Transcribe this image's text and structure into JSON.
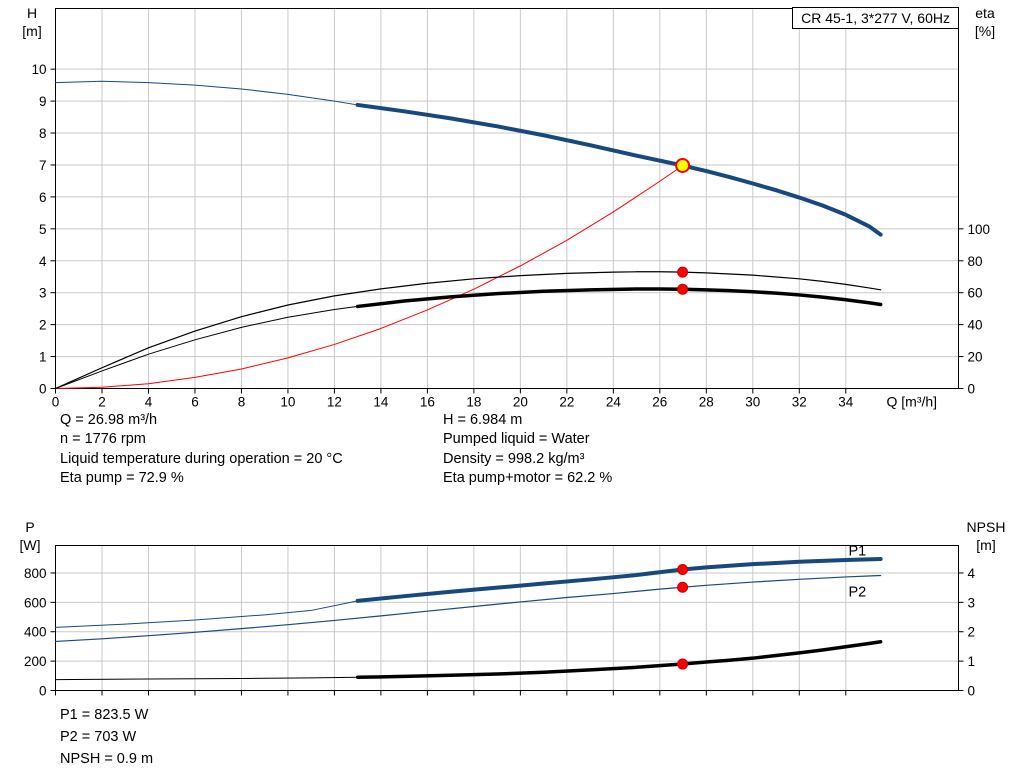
{
  "annotations": {
    "left_column": [
      "Q = 26.98 m³/h",
      "n = 1776 rpm",
      "Liquid temperature during operation = 20 °C",
      "Eta pump = 72.9 %"
    ],
    "right_column": [
      "H = 6.984 m",
      "Pumped liquid = Water",
      "Density = 998.2 kg/m³",
      "Eta pump+motor = 62.2 %"
    ],
    "power_block": [
      "P1 = 823.5 W",
      "P2 = 703 W",
      "NPSH = 0.9 m"
    ]
  },
  "colors": {
    "curve_blue": "#17497F",
    "label_blue": "#2A5CAA",
    "red": "#FF0000",
    "dark_red": "#C80000",
    "yellow": "#FFFF00",
    "grid": "#C9C9C9",
    "black": "#000000"
  },
  "chart_data": [
    {
      "type": "line",
      "name": "qh-eta-chart",
      "title": "CR 45-1, 3*277 V, 60Hz",
      "x": {
        "label": "Q [m³/h]",
        "min": 0,
        "max": 38.85,
        "show_tick_labels": true,
        "ticks": [
          0,
          2,
          4,
          6,
          8,
          10,
          12,
          14,
          16,
          18,
          20,
          22,
          24,
          26,
          28,
          30,
          32,
          34
        ]
      },
      "y_left": {
        "label": "H",
        "unit": "[m]",
        "min": 0,
        "max": 11.9,
        "ticks": [
          0,
          1,
          2,
          3,
          4,
          5,
          6,
          7,
          8,
          9,
          10
        ]
      },
      "y_right": {
        "label": "eta",
        "unit": "[%]",
        "min": 0,
        "max": 238,
        "ticks": [
          0,
          20,
          40,
          60,
          80,
          100
        ]
      },
      "series": [
        {
          "name": "qh-curve-extended",
          "axis": "left",
          "color": "#17497F",
          "width": 1,
          "points": [
            [
              0,
              9.58
            ],
            [
              2,
              9.62
            ],
            [
              4,
              9.58
            ],
            [
              6,
              9.5
            ],
            [
              8,
              9.38
            ],
            [
              10,
              9.21
            ],
            [
              12,
              9.0
            ],
            [
              13,
              8.88
            ]
          ]
        },
        {
          "name": "qh-curve",
          "axis": "left",
          "color": "#17497F",
          "width": 4,
          "points": [
            [
              13,
              8.88
            ],
            [
              15,
              8.68
            ],
            [
              17,
              8.46
            ],
            [
              19,
              8.21
            ],
            [
              21,
              7.93
            ],
            [
              23,
              7.62
            ],
            [
              25,
              7.29
            ],
            [
              26.98,
              6.984
            ],
            [
              28,
              6.81
            ],
            [
              29,
              6.62
            ],
            [
              30,
              6.42
            ],
            [
              31,
              6.21
            ],
            [
              32,
              5.98
            ],
            [
              33,
              5.73
            ],
            [
              34,
              5.44
            ],
            [
              35,
              5.08
            ],
            [
              35.5,
              4.82
            ]
          ]
        },
        {
          "name": "system-curve",
          "axis": "left",
          "color": "#FF0000",
          "width": 1,
          "points": [
            [
              0,
              0
            ],
            [
              2,
              0.04
            ],
            [
              4,
              0.15
            ],
            [
              6,
              0.35
            ],
            [
              8,
              0.61
            ],
            [
              10,
              0.96
            ],
            [
              12,
              1.38
            ],
            [
              14,
              1.88
            ],
            [
              16,
              2.46
            ],
            [
              18,
              3.11
            ],
            [
              20,
              3.84
            ],
            [
              22,
              4.64
            ],
            [
              24,
              5.53
            ],
            [
              26,
              6.49
            ],
            [
              26.98,
              6.98
            ]
          ]
        },
        {
          "name": "eta-pump-curve",
          "axis": "right",
          "color": "#000000",
          "width": 1.2,
          "points": [
            [
              0,
              0
            ],
            [
              2,
              13
            ],
            [
              4,
              25.5
            ],
            [
              6,
              36
            ],
            [
              8,
              45
            ],
            [
              10,
              52.3
            ],
            [
              12,
              58
            ],
            [
              14,
              62.4
            ],
            [
              16,
              65.9
            ],
            [
              18,
              68.7
            ],
            [
              20,
              70.7
            ],
            [
              22,
              72.1
            ],
            [
              24,
              72.9
            ],
            [
              25,
              73.1
            ],
            [
              26,
              73.1
            ],
            [
              26.98,
              72.9
            ],
            [
              28,
              72.4
            ],
            [
              30,
              71.0
            ],
            [
              32,
              68.7
            ],
            [
              33,
              67.1
            ],
            [
              34,
              65.2
            ],
            [
              35,
              63.0
            ],
            [
              35.5,
              61.8
            ]
          ]
        },
        {
          "name": "eta-pump-motor-extended",
          "axis": "right",
          "color": "#000000",
          "width": 1,
          "points": [
            [
              0,
              0
            ],
            [
              2,
              11
            ],
            [
              4,
              21.5
            ],
            [
              6,
              30.5
            ],
            [
              8,
              38.3
            ],
            [
              10,
              44.6
            ],
            [
              12,
              49.5
            ],
            [
              13,
              51.4
            ]
          ]
        },
        {
          "name": "eta-pump-motor-curve",
          "axis": "right",
          "color": "#000000",
          "width": 3.5,
          "points": [
            [
              13,
              51.4
            ],
            [
              15,
              54.8
            ],
            [
              17,
              57.4
            ],
            [
              19,
              59.4
            ],
            [
              21,
              60.9
            ],
            [
              23,
              61.8
            ],
            [
              25,
              62.3
            ],
            [
              26,
              62.3
            ],
            [
              26.98,
              62.2
            ],
            [
              28,
              61.8
            ],
            [
              29,
              61.3
            ],
            [
              30,
              60.6
            ],
            [
              31,
              59.7
            ],
            [
              32,
              58.6
            ],
            [
              33,
              57.2
            ],
            [
              34,
              55.6
            ],
            [
              35,
              53.7
            ],
            [
              35.5,
              52.6
            ]
          ]
        }
      ],
      "markers": [
        {
          "name": "duty-point",
          "x": 26.98,
          "y": 6.984,
          "axis": "left",
          "fill": "#FFFF00",
          "stroke": "#FF0000",
          "stroke_width": 2,
          "r": 6.5
        },
        {
          "name": "eta-pump-point",
          "x": 26.98,
          "y": 72.9,
          "axis": "right",
          "fill": "#FF0000",
          "stroke": "#C80000",
          "stroke_width": 1,
          "r": 5
        },
        {
          "name": "eta-pump-motor-point",
          "x": 26.98,
          "y": 62.2,
          "axis": "right",
          "fill": "#FF0000",
          "stroke": "#C80000",
          "stroke_width": 1,
          "r": 5
        }
      ]
    },
    {
      "type": "line",
      "name": "power-npsh-chart",
      "title": "",
      "x": {
        "label": "",
        "min": 0,
        "max": 38.85,
        "show_tick_labels": false,
        "ticks": [
          0,
          2,
          4,
          6,
          8,
          10,
          12,
          14,
          16,
          18,
          20,
          22,
          24,
          26,
          28,
          30,
          32,
          34
        ]
      },
      "y_left": {
        "label": "P",
        "unit": "[W]",
        "min": 0,
        "max": 987,
        "ticks": [
          0,
          200,
          400,
          600,
          800
        ]
      },
      "y_right": {
        "label": "NPSH",
        "unit": "[m]",
        "min": 0,
        "max": 4.935,
        "ticks": [
          0,
          1,
          2,
          3,
          4
        ]
      },
      "series": [
        {
          "name": "p1-curve-extended",
          "axis": "left",
          "color": "#17497F",
          "width": 1,
          "points": [
            [
              0,
              430
            ],
            [
              3,
              452
            ],
            [
              6,
              480
            ],
            [
              9,
              515
            ],
            [
              11,
              545
            ],
            [
              13,
              610
            ]
          ]
        },
        {
          "name": "p1-curve",
          "axis": "left",
          "color": "#17497F",
          "width": 4,
          "label": "P1",
          "label_at": [
            34.5,
            920
          ],
          "label_color": "#2A5CAA",
          "points": [
            [
              13,
              610
            ],
            [
              15,
              642
            ],
            [
              17,
              672
            ],
            [
              19,
              700
            ],
            [
              21,
              728
            ],
            [
              23,
              756
            ],
            [
              25,
              786
            ],
            [
              26.98,
              823.5
            ],
            [
              28,
              838
            ],
            [
              30,
              860
            ],
            [
              32,
              876
            ],
            [
              34,
              888
            ],
            [
              35.5,
              895
            ]
          ]
        },
        {
          "name": "p2-curve",
          "axis": "left",
          "color": "#17497F",
          "width": 1.2,
          "label": "P2",
          "label_at": [
            34.5,
            640
          ],
          "label_color": "#2A5CAA",
          "points": [
            [
              0,
              334
            ],
            [
              2,
              352
            ],
            [
              4,
              373
            ],
            [
              6,
              396
            ],
            [
              8,
              421
            ],
            [
              10,
              448
            ],
            [
              12,
              477
            ],
            [
              14,
              508
            ],
            [
              16,
              540
            ],
            [
              18,
              572
            ],
            [
              20,
              603
            ],
            [
              22,
              633
            ],
            [
              24,
              660
            ],
            [
              26,
              690
            ],
            [
              26.98,
              703
            ],
            [
              28,
              716
            ],
            [
              30,
              738
            ],
            [
              32,
              757
            ],
            [
              34,
              773
            ],
            [
              35.5,
              783
            ]
          ]
        },
        {
          "name": "npsh-curve-extended",
          "axis": "right",
          "color": "#000000",
          "width": 1,
          "points": [
            [
              0,
              0.37
            ],
            [
              4,
              0.39
            ],
            [
              8,
              0.41
            ],
            [
              11,
              0.43
            ],
            [
              13,
              0.45
            ]
          ]
        },
        {
          "name": "npsh-curve",
          "axis": "right",
          "color": "#000000",
          "width": 3.5,
          "points": [
            [
              13,
              0.45
            ],
            [
              15,
              0.48
            ],
            [
              17,
              0.52
            ],
            [
              19,
              0.56
            ],
            [
              21,
              0.62
            ],
            [
              23,
              0.7
            ],
            [
              25,
              0.79
            ],
            [
              26.98,
              0.9
            ],
            [
              28,
              0.97
            ],
            [
              29,
              1.03
            ],
            [
              30,
              1.1
            ],
            [
              31,
              1.19
            ],
            [
              32,
              1.28
            ],
            [
              33,
              1.38
            ],
            [
              34,
              1.49
            ],
            [
              35,
              1.6
            ],
            [
              35.5,
              1.66
            ]
          ]
        }
      ],
      "markers": [
        {
          "name": "p1-point",
          "x": 26.98,
          "y": 823.5,
          "axis": "left",
          "fill": "#FF0000",
          "stroke": "#C80000",
          "stroke_width": 1,
          "r": 5
        },
        {
          "name": "p2-point",
          "x": 26.98,
          "y": 703,
          "axis": "left",
          "fill": "#FF0000",
          "stroke": "#C80000",
          "stroke_width": 1,
          "r": 5
        },
        {
          "name": "npsh-point",
          "x": 26.98,
          "y": 0.9,
          "axis": "right",
          "fill": "#FF0000",
          "stroke": "#C80000",
          "stroke_width": 1,
          "r": 5
        }
      ]
    }
  ]
}
